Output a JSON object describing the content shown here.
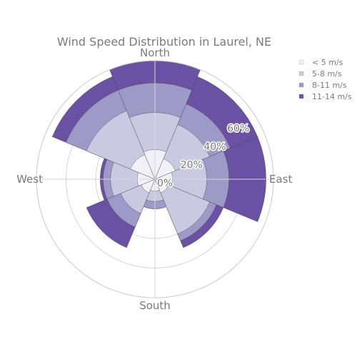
{
  "chart_data": {
    "type": "barpolar",
    "title": "Wind Speed Distribution in Laurel, NE",
    "directions": [
      "North",
      "N-E",
      "East",
      "S-E",
      "South",
      "S-W",
      "West",
      "N-W"
    ],
    "angular_labels": [
      "North",
      "East",
      "South",
      "West"
    ],
    "radial_tick_labels": [
      "0%",
      "20%",
      "40%",
      "60%"
    ],
    "radial_ticks": [
      0,
      20,
      40,
      60
    ],
    "radial_range": [
      0,
      80
    ],
    "series": [
      {
        "name": "< 5 m/s",
        "color": "#f2f0f7",
        "values": [
          20,
          15,
          12,
          10,
          8,
          10,
          12,
          18
        ]
      },
      {
        "name": "5-8 m/s",
        "color": "#cbc9e2",
        "values": [
          45,
          40,
          35,
          40,
          15,
          25,
          30,
          50
        ]
      },
      {
        "name": "8-11 m/s",
        "color": "#9e9ac8",
        "values": [
          65,
          55,
          50,
          45,
          20,
          35,
          35,
          65
        ]
      },
      {
        "name": "11-14 m/s",
        "color": "#6a51a3",
        "values": [
          80,
          75,
          75,
          50,
          20,
          50,
          37,
          75
        ]
      }
    ],
    "grid": true,
    "legend_position": "top-right"
  }
}
